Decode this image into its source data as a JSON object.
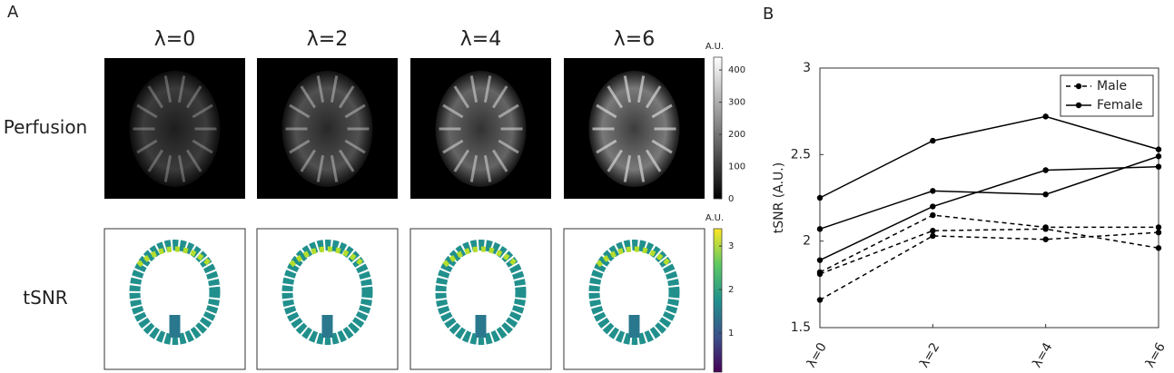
{
  "panel_a": {
    "label": "A",
    "columns": [
      "λ=0",
      "λ=2",
      "λ=4",
      "λ=6"
    ],
    "rows": [
      "Perfusion",
      "tSNR"
    ],
    "colorbars": [
      {
        "unit": "A.U.",
        "clim": [
          0,
          440
        ],
        "ticks": [
          0,
          100,
          200,
          300,
          400
        ],
        "colormap": "gray"
      },
      {
        "unit": "A.U.",
        "clim": [
          0.1,
          3.4
        ],
        "ticks": [
          1,
          2,
          3
        ],
        "colormap": "viridis"
      }
    ]
  },
  "chart_data": {
    "type": "line",
    "panel_label": "B",
    "categories": [
      "λ=0",
      "λ=2",
      "λ=4",
      "λ=6"
    ],
    "y_label": "tSNR (A.U.)",
    "ylim": [
      1.5,
      3
    ],
    "yticks": [
      1.5,
      2,
      2.5,
      3
    ],
    "legend": "upper right",
    "series": [
      {
        "name": "Male",
        "line_style": "dashed",
        "color": "#000000",
        "lines": [
          [
            1.82,
            2.15,
            2.08,
            2.08
          ],
          [
            1.81,
            2.06,
            2.07,
            1.96
          ],
          [
            1.66,
            2.03,
            2.01,
            2.05
          ]
        ]
      },
      {
        "name": "Female",
        "line_style": "solid",
        "color": "#000000",
        "lines": [
          [
            2.25,
            2.58,
            2.72,
            2.53
          ],
          [
            2.07,
            2.29,
            2.27,
            2.49
          ],
          [
            1.89,
            2.2,
            2.41,
            2.43
          ]
        ]
      }
    ]
  }
}
